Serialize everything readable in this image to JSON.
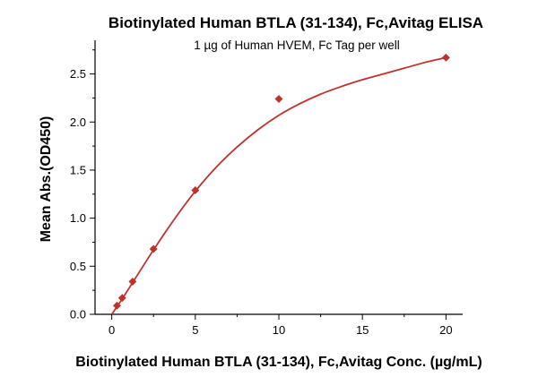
{
  "chart_data": {
    "type": "scatter",
    "title": "Biotinylated Human BTLA (31-134), Fc,Avitag ELISA",
    "subtitle": "1 µg of Human HVEM, Fc Tag per well",
    "xlabel": "Biotinylated Human BTLA (31-134), Fc,Avitag Conc. (µg/mL)",
    "ylabel": "Mean Abs.(OD450)",
    "xlim": [
      -1,
      21
    ],
    "ylim": [
      0,
      2.85
    ],
    "xticks": [
      0,
      5,
      10,
      15,
      20
    ],
    "xtick_labels": [
      "0",
      "5",
      "10",
      "15",
      "20"
    ],
    "yticks": [
      0.0,
      0.5,
      1.0,
      1.5,
      2.0,
      2.5
    ],
    "ytick_labels": [
      "0.0",
      "0.5",
      "1.0",
      "1.5",
      "2.0",
      "2.5"
    ],
    "grid": false,
    "colors": {
      "marker": "#c0312b",
      "curve": "#c0312b"
    },
    "series": [
      {
        "points": {
          "x": [
            0.313,
            0.625,
            1.25,
            2.5,
            5,
            10,
            20
          ],
          "y": [
            0.09,
            0.17,
            0.34,
            0.68,
            1.29,
            2.24,
            2.67
          ]
        },
        "fit_curve": {
          "x": [
            0,
            0.313,
            0.625,
            1.25,
            2.5,
            3.75,
            5,
            6.25,
            7.5,
            8.75,
            10,
            11.25,
            12.5,
            13.75,
            15,
            16.25,
            17.5,
            18.75,
            20
          ],
          "y": [
            0.0,
            0.08,
            0.16,
            0.33,
            0.67,
            0.99,
            1.28,
            1.53,
            1.74,
            1.92,
            2.07,
            2.19,
            2.29,
            2.37,
            2.44,
            2.5,
            2.56,
            2.62,
            2.67
          ]
        }
      }
    ]
  }
}
